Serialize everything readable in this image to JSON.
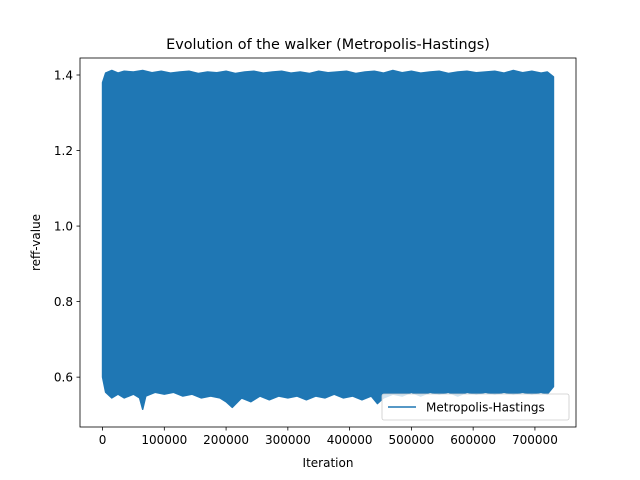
{
  "chart_data": {
    "type": "line",
    "title": "Evolution of the walker (Metropolis-Hastings)",
    "xlabel": "Iteration",
    "ylabel": "reff-value",
    "xlim": [
      -36500,
      766500
    ],
    "ylim": [
      0.468,
      1.445
    ],
    "x_ticks": [
      0,
      100000,
      200000,
      300000,
      400000,
      500000,
      600000,
      700000
    ],
    "x_tick_labels": [
      "0",
      "100000",
      "200000",
      "300000",
      "400000",
      "500000",
      "600000",
      "700000"
    ],
    "y_ticks": [
      0.6,
      0.8,
      1.0,
      1.2,
      1.4
    ],
    "y_tick_labels": [
      "0.6",
      "0.8",
      "1.0",
      "1.2",
      "1.4"
    ],
    "grid": false,
    "legend_position": "lower-right",
    "series": [
      {
        "name": "Metropolis-Hastings",
        "color": "#1f77b4",
        "iterations": [
          0,
          730000
        ],
        "band_upper": [
          [
            0,
            1.38
          ],
          [
            5000,
            1.405
          ],
          [
            15000,
            1.412
          ],
          [
            25000,
            1.405
          ],
          [
            35000,
            1.41
          ],
          [
            50000,
            1.408
          ],
          [
            65000,
            1.412
          ],
          [
            80000,
            1.406
          ],
          [
            95000,
            1.41
          ],
          [
            110000,
            1.405
          ],
          [
            125000,
            1.408
          ],
          [
            140000,
            1.41
          ],
          [
            155000,
            1.404
          ],
          [
            170000,
            1.408
          ],
          [
            185000,
            1.406
          ],
          [
            200000,
            1.41
          ],
          [
            215000,
            1.404
          ],
          [
            230000,
            1.408
          ],
          [
            245000,
            1.41
          ],
          [
            260000,
            1.405
          ],
          [
            275000,
            1.408
          ],
          [
            290000,
            1.41
          ],
          [
            305000,
            1.405
          ],
          [
            320000,
            1.408
          ],
          [
            335000,
            1.404
          ],
          [
            350000,
            1.41
          ],
          [
            365000,
            1.406
          ],
          [
            380000,
            1.408
          ],
          [
            395000,
            1.41
          ],
          [
            410000,
            1.404
          ],
          [
            425000,
            1.408
          ],
          [
            440000,
            1.41
          ],
          [
            455000,
            1.405
          ],
          [
            470000,
            1.412
          ],
          [
            485000,
            1.406
          ],
          [
            500000,
            1.41
          ],
          [
            515000,
            1.405
          ],
          [
            530000,
            1.408
          ],
          [
            545000,
            1.41
          ],
          [
            560000,
            1.404
          ],
          [
            575000,
            1.408
          ],
          [
            590000,
            1.41
          ],
          [
            605000,
            1.406
          ],
          [
            620000,
            1.408
          ],
          [
            635000,
            1.41
          ],
          [
            650000,
            1.405
          ],
          [
            665000,
            1.412
          ],
          [
            680000,
            1.406
          ],
          [
            695000,
            1.41
          ],
          [
            710000,
            1.405
          ],
          [
            720000,
            1.408
          ],
          [
            730000,
            1.395
          ]
        ],
        "band_lower": [
          [
            0,
            0.6
          ],
          [
            5000,
            0.56
          ],
          [
            15000,
            0.545
          ],
          [
            25000,
            0.555
          ],
          [
            35000,
            0.545
          ],
          [
            50000,
            0.555
          ],
          [
            60000,
            0.545
          ],
          [
            65000,
            0.515
          ],
          [
            70000,
            0.55
          ],
          [
            85000,
            0.56
          ],
          [
            100000,
            0.555
          ],
          [
            115000,
            0.56
          ],
          [
            130000,
            0.55
          ],
          [
            145000,
            0.555
          ],
          [
            160000,
            0.545
          ],
          [
            175000,
            0.55
          ],
          [
            190000,
            0.545
          ],
          [
            200000,
            0.535
          ],
          [
            210000,
            0.52
          ],
          [
            225000,
            0.545
          ],
          [
            240000,
            0.535
          ],
          [
            255000,
            0.55
          ],
          [
            270000,
            0.54
          ],
          [
            285000,
            0.55
          ],
          [
            300000,
            0.545
          ],
          [
            315000,
            0.55
          ],
          [
            330000,
            0.54
          ],
          [
            345000,
            0.55
          ],
          [
            360000,
            0.545
          ],
          [
            375000,
            0.555
          ],
          [
            390000,
            0.545
          ],
          [
            405000,
            0.55
          ],
          [
            420000,
            0.54
          ],
          [
            435000,
            0.55
          ],
          [
            445000,
            0.53
          ],
          [
            455000,
            0.545
          ],
          [
            470000,
            0.555
          ],
          [
            485000,
            0.55
          ],
          [
            500000,
            0.56
          ],
          [
            515000,
            0.55
          ],
          [
            530000,
            0.56
          ],
          [
            545000,
            0.555
          ],
          [
            560000,
            0.56
          ],
          [
            575000,
            0.55
          ],
          [
            590000,
            0.56
          ],
          [
            605000,
            0.555
          ],
          [
            620000,
            0.56
          ],
          [
            635000,
            0.555
          ],
          [
            650000,
            0.56
          ],
          [
            665000,
            0.555
          ],
          [
            680000,
            0.56
          ],
          [
            695000,
            0.555
          ],
          [
            710000,
            0.56
          ],
          [
            720000,
            0.555
          ],
          [
            730000,
            0.575
          ]
        ]
      }
    ]
  }
}
